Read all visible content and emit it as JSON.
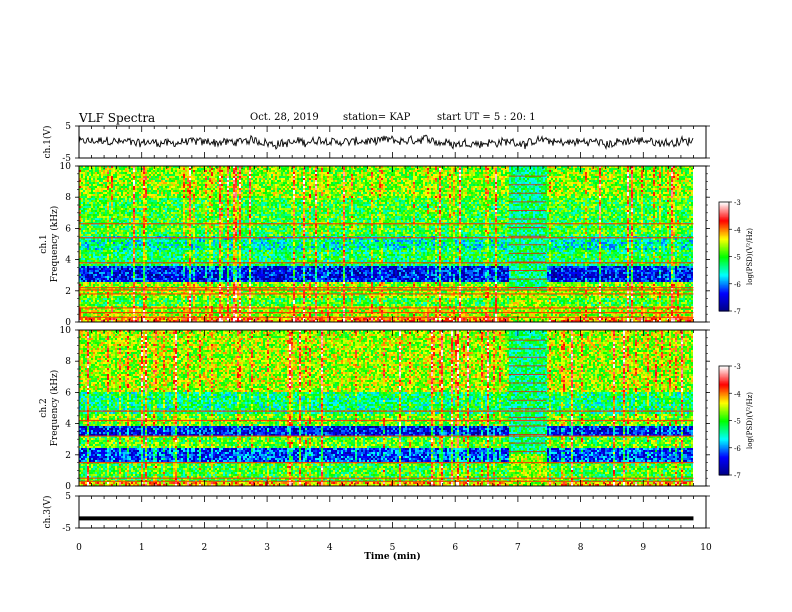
{
  "header": {
    "title": "VLF Spectra",
    "date": "Oct. 28, 2019",
    "station": "station= KAP",
    "start": "start UT =  5 : 20: 1"
  },
  "chart_data": [
    {
      "type": "line",
      "name": "ch1-waveform",
      "ylabel": "ch.1(V)",
      "ylim": [
        -5,
        5
      ],
      "yticks": [
        "5",
        "-5"
      ],
      "xlim": [
        0,
        10
      ],
      "data_extent_min": 9.8,
      "noise_amplitude_v": 1.6
    },
    {
      "type": "heatmap",
      "name": "ch1-spectrogram",
      "ylabel_line1": "ch.1",
      "ylabel_line2": "Frequency (kHz)",
      "ylim": [
        0,
        10
      ],
      "yticks": [
        "0",
        "2",
        "4",
        "6",
        "8",
        "10"
      ],
      "xlim": [
        0,
        10
      ],
      "data_extent_min": 9.8,
      "colorbar": {
        "label": "log(PSD)(V²/Hz)",
        "range": [
          -7,
          -3
        ],
        "ticks": [
          "-3",
          "-4",
          "-5",
          "-6",
          "-7"
        ],
        "colors": [
          "#000080",
          "#0000ff",
          "#00ffff",
          "#00ff00",
          "#ffff00",
          "#ff0000",
          "#ffffff"
        ]
      },
      "band_levels": [
        {
          "f0": 0.0,
          "f1": 0.3,
          "level": -4.0
        },
        {
          "f0": 0.3,
          "f1": 1.0,
          "level": -4.6
        },
        {
          "f0": 1.0,
          "f1": 1.5,
          "level": -5.0
        },
        {
          "f0": 1.5,
          "f1": 2.6,
          "level": -4.7
        },
        {
          "f0": 2.6,
          "f1": 3.6,
          "level": -6.4
        },
        {
          "f0": 3.6,
          "f1": 4.6,
          "level": -5.2
        },
        {
          "f0": 4.6,
          "f1": 5.5,
          "level": -5.5
        },
        {
          "f0": 5.5,
          "f1": 8.0,
          "level": -5.0
        },
        {
          "f0": 8.0,
          "f1": 10.0,
          "level": -4.7
        }
      ],
      "lines_khz": [
        0.3,
        0.6,
        0.9,
        1.8,
        2.05,
        2.2,
        3.8,
        5.4,
        6.3
      ],
      "event_window_min": [
        6.85,
        7.45
      ]
    },
    {
      "type": "heatmap",
      "name": "ch2-spectrogram",
      "ylabel_line1": "ch.2",
      "ylabel_line2": "Frequency (kHz)",
      "ylim": [
        0,
        10
      ],
      "yticks": [
        "0",
        "2",
        "4",
        "6",
        "8",
        "10"
      ],
      "xlim": [
        0,
        10
      ],
      "data_extent_min": 9.8,
      "colorbar": {
        "label": "log(PSD)(V²/Hz)",
        "range": [
          -7,
          -3
        ],
        "ticks": [
          "-3",
          "-4",
          "-5",
          "-6",
          "-7"
        ],
        "colors": [
          "#000080",
          "#0000ff",
          "#00ffff",
          "#00ff00",
          "#ffff00",
          "#ff0000",
          "#ffffff"
        ]
      },
      "band_levels": [
        {
          "f0": 0.0,
          "f1": 0.3,
          "level": -4.2
        },
        {
          "f0": 0.3,
          "f1": 1.5,
          "level": -5.0
        },
        {
          "f0": 1.5,
          "f1": 2.4,
          "level": -6.2
        },
        {
          "f0": 2.4,
          "f1": 3.2,
          "level": -4.9
        },
        {
          "f0": 3.2,
          "f1": 3.9,
          "level": -6.4
        },
        {
          "f0": 3.9,
          "f1": 4.6,
          "level": -4.8
        },
        {
          "f0": 4.6,
          "f1": 6.0,
          "level": -5.3
        },
        {
          "f0": 6.0,
          "f1": 10.0,
          "level": -4.6
        }
      ],
      "lines_khz": [
        0.3,
        0.5,
        1.5,
        3.2,
        4.2,
        4.8
      ],
      "event_window_min": [
        6.85,
        7.45
      ]
    },
    {
      "type": "line",
      "name": "ch3-waveform",
      "ylabel": "ch.3(V)",
      "ylim": [
        -5,
        5
      ],
      "yticks": [
        "5",
        "-5"
      ],
      "xlim": [
        0,
        10
      ],
      "constant_value_v": -2,
      "data_extent_min": 9.8,
      "xlabel": "Time (min)",
      "xticks": [
        "0",
        "1",
        "2",
        "3",
        "4",
        "5",
        "6",
        "7",
        "8",
        "9",
        "10"
      ]
    }
  ]
}
